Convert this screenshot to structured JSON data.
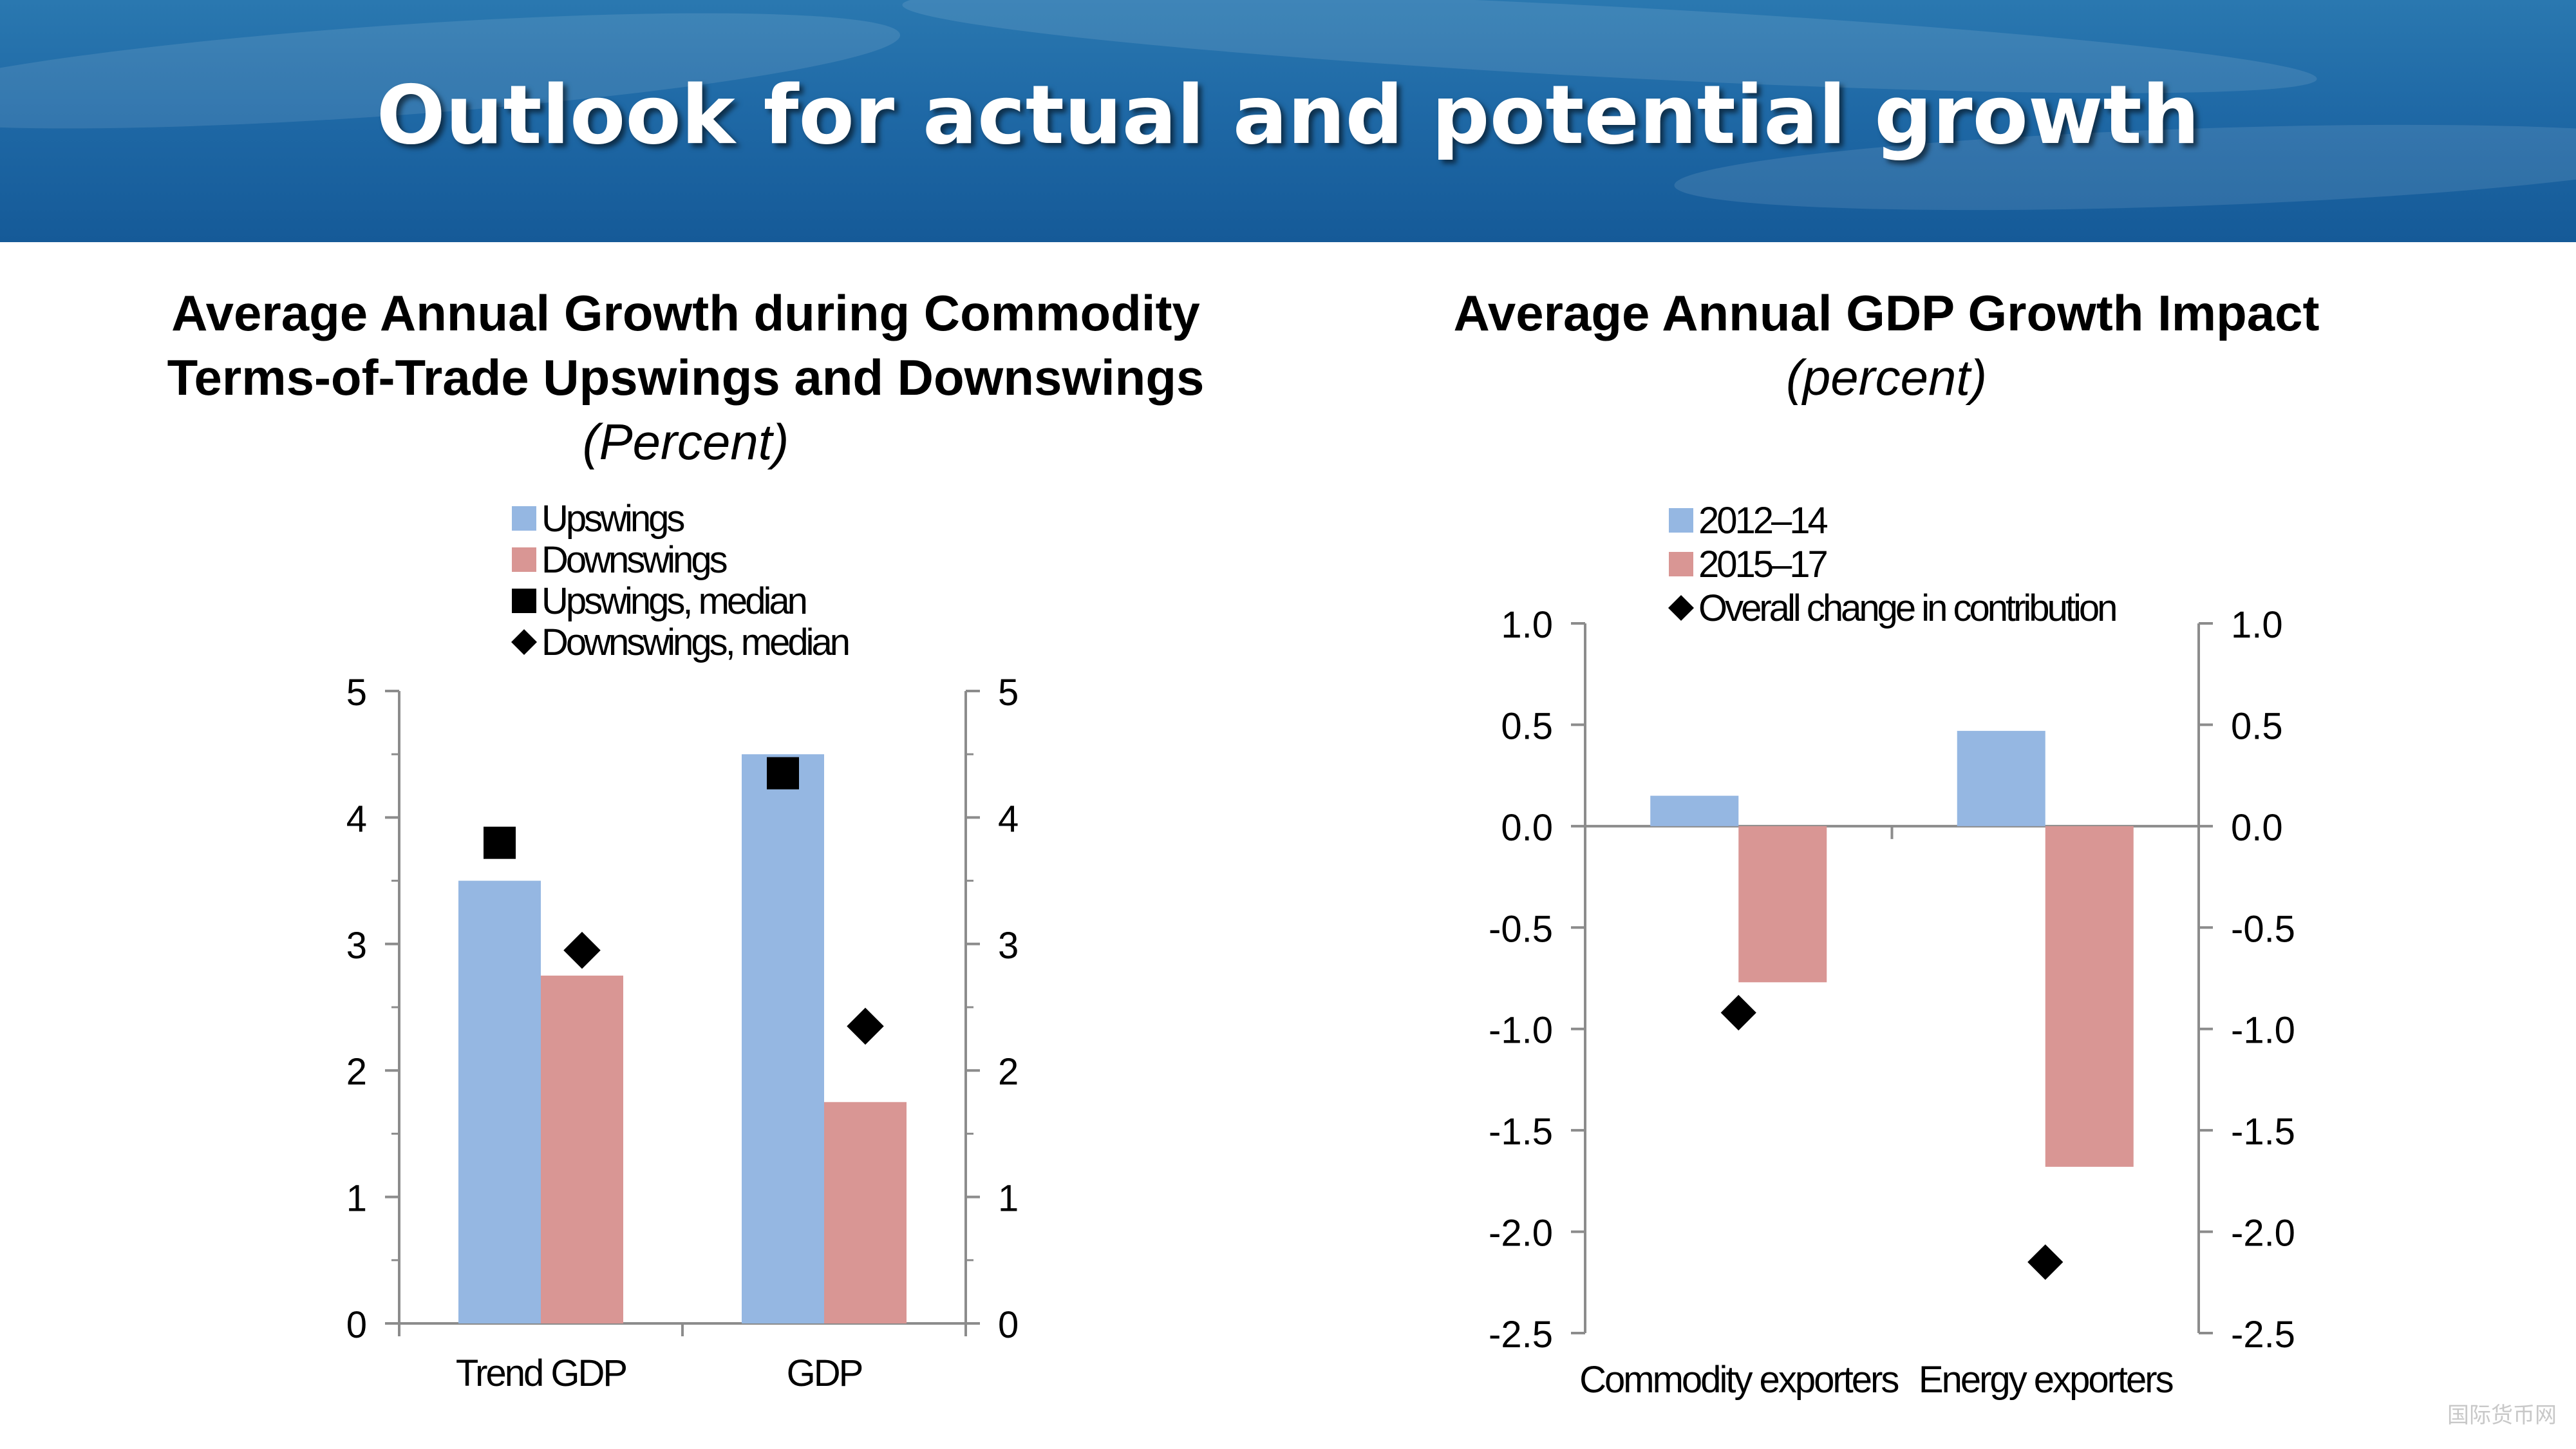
{
  "slide": {
    "title": "Outlook for actual and potential growth",
    "watermark": "国际货币网"
  },
  "left": {
    "title_line1": "Average Annual Growth during Commodity",
    "title_line2": "Terms-of-Trade Upswings and Downswings",
    "unit": "(Percent)"
  },
  "right": {
    "title_line1": "Average Annual GDP Growth Impact",
    "unit": "(percent)"
  },
  "colors": {
    "blue": "#95b7e2",
    "red": "#d99694",
    "marker": "#000000"
  },
  "chart_data": [
    {
      "type": "bar",
      "title": "Average Annual Growth during Commodity Terms-of-Trade Upswings and Downswings",
      "ylabel": "(Percent)",
      "categories": [
        "Trend GDP",
        "GDP"
      ],
      "series": [
        {
          "name": "Upswings",
          "kind": "bar",
          "color": "#95b7e2",
          "values": [
            3.5,
            4.5
          ]
        },
        {
          "name": "Downswings",
          "kind": "bar",
          "color": "#d99694",
          "values": [
            2.75,
            1.75
          ]
        },
        {
          "name": "Upswings, median",
          "kind": "square-marker",
          "values": [
            3.8,
            4.35
          ]
        },
        {
          "name": "Downswings, median",
          "kind": "diamond-marker",
          "values": [
            2.95,
            2.35
          ]
        }
      ],
      "ylim": [
        0,
        5
      ],
      "yticks": [
        "0",
        "1",
        "2",
        "3",
        "4",
        "5"
      ],
      "dual_axis": true,
      "legend": "top"
    },
    {
      "type": "bar",
      "title": "Average Annual GDP Growth Impact",
      "ylabel": "(percent)",
      "categories": [
        "Commodity exporters",
        "Energy exporters"
      ],
      "series": [
        {
          "name": "2012–14",
          "kind": "bar",
          "color": "#95b7e2",
          "values": [
            0.15,
            0.47
          ]
        },
        {
          "name": "2015–17",
          "kind": "bar",
          "color": "#d99694",
          "values": [
            -0.77,
            -1.68
          ]
        },
        {
          "name": "Overall change in contribution",
          "kind": "diamond-marker",
          "values": [
            -0.92,
            -2.15
          ]
        }
      ],
      "ylim": [
        -2.5,
        1.0
      ],
      "yticks": [
        "1.0",
        "0.5",
        "0.0",
        "-0.5",
        "-1.0",
        "-1.5",
        "-2.0",
        "-2.5"
      ],
      "dual_axis": true,
      "legend": "top"
    }
  ]
}
